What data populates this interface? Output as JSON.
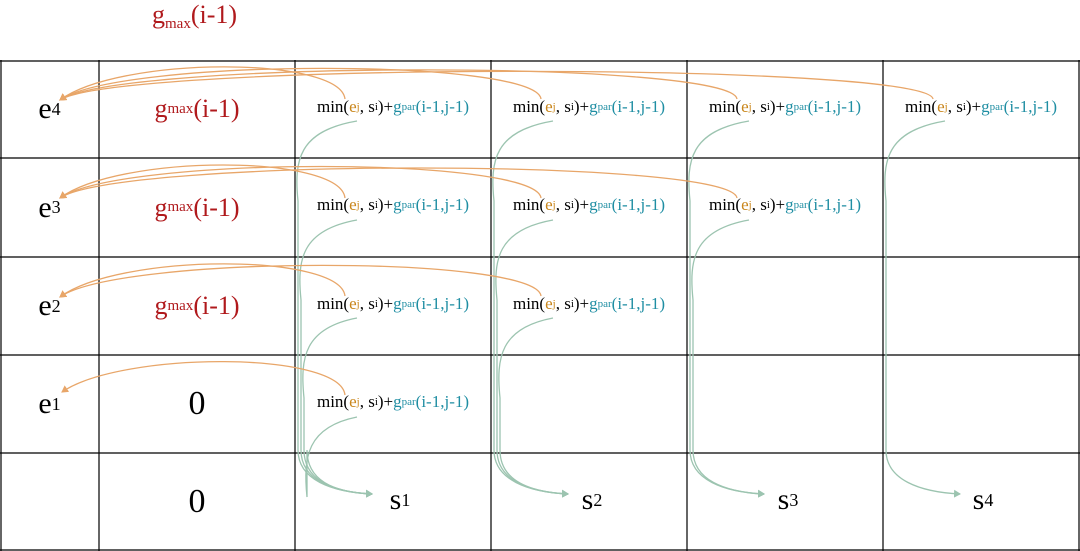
{
  "top_label": {
    "base": "g",
    "sub": "max",
    "rest": "(i-1)"
  },
  "row_labels": [
    {
      "base": "e",
      "sub": "4"
    },
    {
      "base": "e",
      "sub": "3"
    },
    {
      "base": "e",
      "sub": "2"
    },
    {
      "base": "e",
      "sub": "1"
    }
  ],
  "col_labels": [
    {
      "base": "s",
      "sub": "1"
    },
    {
      "base": "s",
      "sub": "2"
    },
    {
      "base": "s",
      "sub": "3"
    },
    {
      "base": "s",
      "sub": "4"
    }
  ],
  "gmax_cell": {
    "base": "g",
    "sub": "max",
    "rest": "(i-1)"
  },
  "zero": "0",
  "formula": {
    "min_open": "min(",
    "e_base": "e",
    "e_sub": "j",
    "comma_s": ", s",
    "s_sub": "i",
    "close_plus": ")+ ",
    "g_base": "g",
    "g_sub": "par",
    "g_rest": "(i-1,j-1)"
  },
  "colors": {
    "red": "#b0191c",
    "orange": "#c9861b",
    "teal": "#1f8ea3",
    "arc_orange": "#e8a669",
    "arc_green": "#9cc4b0"
  }
}
